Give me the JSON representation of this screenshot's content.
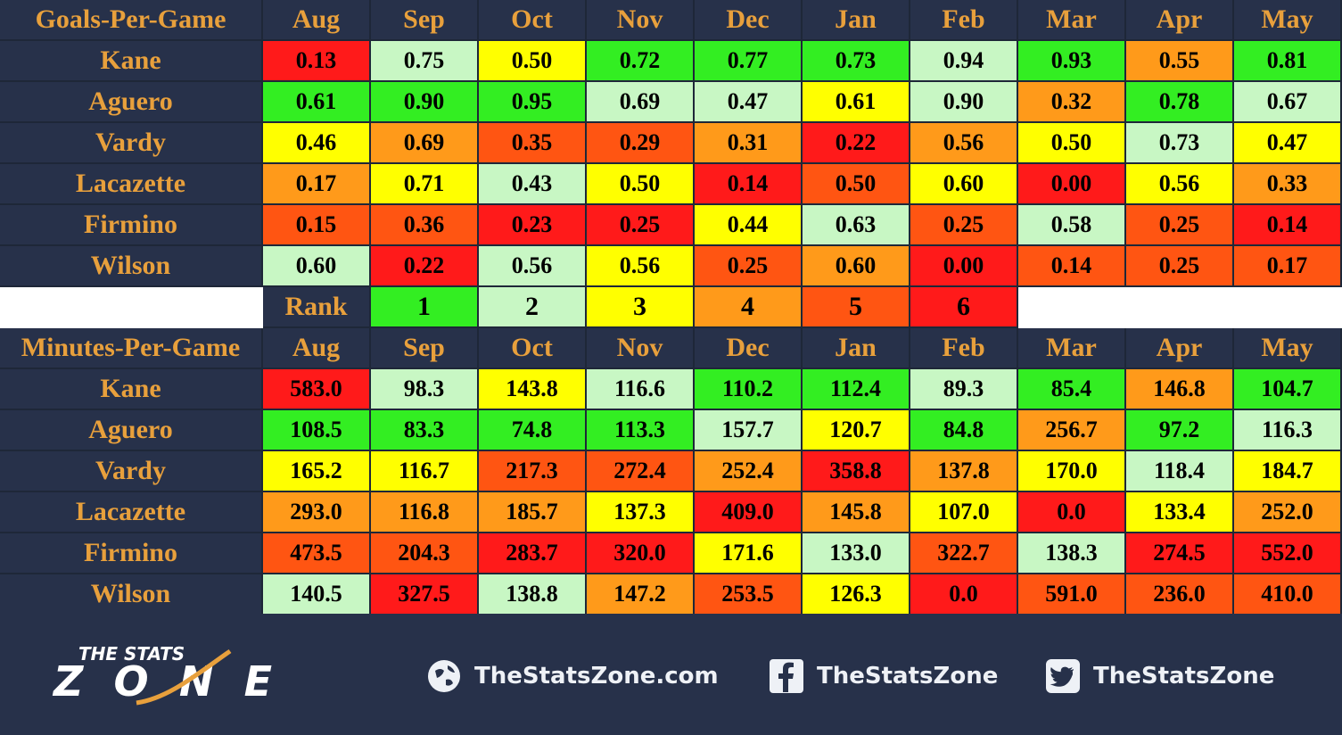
{
  "colors": {
    "rank_1": "#33ee22",
    "rank_2": "#c8f7c4",
    "rank_3": "#ffff00",
    "rank_4": "#ff9a1a",
    "rank_5": "#ff5512",
    "rank_6": "#ff1a1a",
    "header_bg": "#27314a",
    "header_text": "#e8a03c"
  },
  "rank_legend": {
    "label": "Rank",
    "ranks": [
      "1",
      "2",
      "3",
      "4",
      "5",
      "6"
    ]
  },
  "footer": {
    "logo_top": "THE STATS",
    "logo_bottom": "ZONE",
    "website": "TheStatsZone.com",
    "facebook": "TheStatsZone",
    "twitter": "TheStatsZone"
  },
  "chart_data": [
    {
      "type": "heatmap",
      "title": "Goals-Per-Game",
      "columns": [
        "Aug",
        "Sep",
        "Oct",
        "Nov",
        "Dec",
        "Jan",
        "Feb",
        "Mar",
        "Apr",
        "May"
      ],
      "rows": [
        {
          "name": "Kane",
          "values": [
            "0.13",
            "0.75",
            "0.50",
            "0.72",
            "0.77",
            "0.73",
            "0.94",
            "0.93",
            "0.55",
            "0.81"
          ],
          "ranks": [
            6,
            2,
            3,
            1,
            1,
            1,
            2,
            1,
            4,
            1
          ]
        },
        {
          "name": "Aguero",
          "values": [
            "0.61",
            "0.90",
            "0.95",
            "0.69",
            "0.47",
            "0.61",
            "0.90",
            "0.32",
            "0.78",
            "0.67"
          ],
          "ranks": [
            1,
            1,
            1,
            2,
            2,
            3,
            2,
            4,
            1,
            2
          ]
        },
        {
          "name": "Vardy",
          "values": [
            "0.46",
            "0.69",
            "0.35",
            "0.29",
            "0.31",
            "0.22",
            "0.56",
            "0.50",
            "0.73",
            "0.47"
          ],
          "ranks": [
            3,
            4,
            5,
            5,
            4,
            6,
            4,
            3,
            2,
            3
          ]
        },
        {
          "name": "Lacazette",
          "values": [
            "0.17",
            "0.71",
            "0.43",
            "0.50",
            "0.14",
            "0.50",
            "0.60",
            "0.00",
            "0.56",
            "0.33"
          ],
          "ranks": [
            4,
            3,
            2,
            3,
            6,
            5,
            3,
            6,
            3,
            4
          ]
        },
        {
          "name": "Firmino",
          "values": [
            "0.15",
            "0.36",
            "0.23",
            "0.25",
            "0.44",
            "0.63",
            "0.25",
            "0.58",
            "0.25",
            "0.14"
          ],
          "ranks": [
            5,
            5,
            6,
            6,
            3,
            2,
            5,
            2,
            5,
            6
          ]
        },
        {
          "name": "Wilson",
          "values": [
            "0.60",
            "0.22",
            "0.56",
            "0.56",
            "0.25",
            "0.60",
            "0.00",
            "0.14",
            "0.25",
            "0.17"
          ],
          "ranks": [
            2,
            6,
            2,
            3,
            5,
            4,
            6,
            5,
            5,
            5
          ]
        }
      ]
    },
    {
      "type": "heatmap",
      "title": "Minutes-Per-Game",
      "columns": [
        "Aug",
        "Sep",
        "Oct",
        "Nov",
        "Dec",
        "Jan",
        "Feb",
        "Mar",
        "Apr",
        "May"
      ],
      "rows": [
        {
          "name": "Kane",
          "values": [
            "583.0",
            "98.3",
            "143.8",
            "116.6",
            "110.2",
            "112.4",
            "89.3",
            "85.4",
            "146.8",
            "104.7"
          ],
          "ranks": [
            6,
            2,
            3,
            2,
            1,
            1,
            2,
            1,
            4,
            1
          ]
        },
        {
          "name": "Aguero",
          "values": [
            "108.5",
            "83.3",
            "74.8",
            "113.3",
            "157.7",
            "120.7",
            "84.8",
            "256.7",
            "97.2",
            "116.3"
          ],
          "ranks": [
            1,
            1,
            1,
            1,
            2,
            3,
            1,
            4,
            1,
            2
          ]
        },
        {
          "name": "Vardy",
          "values": [
            "165.2",
            "116.7",
            "217.3",
            "272.4",
            "252.4",
            "358.8",
            "137.8",
            "170.0",
            "118.4",
            "184.7"
          ],
          "ranks": [
            3,
            3,
            5,
            5,
            4,
            6,
            4,
            3,
            2,
            3
          ]
        },
        {
          "name": "Lacazette",
          "values": [
            "293.0",
            "116.8",
            "185.7",
            "137.3",
            "409.0",
            "145.8",
            "107.0",
            "0.0",
            "133.4",
            "252.0"
          ],
          "ranks": [
            4,
            4,
            4,
            3,
            6,
            4,
            3,
            6,
            3,
            4
          ]
        },
        {
          "name": "Firmino",
          "values": [
            "473.5",
            "204.3",
            "283.7",
            "320.0",
            "171.6",
            "133.0",
            "322.7",
            "138.3",
            "274.5",
            "552.0"
          ],
          "ranks": [
            5,
            5,
            6,
            6,
            3,
            2,
            5,
            2,
            6,
            6
          ]
        },
        {
          "name": "Wilson",
          "values": [
            "140.5",
            "327.5",
            "138.8",
            "147.2",
            "253.5",
            "126.3",
            "0.0",
            "591.0",
            "236.0",
            "410.0"
          ],
          "ranks": [
            2,
            6,
            2,
            4,
            5,
            3,
            6,
            5,
            5,
            5
          ]
        }
      ]
    }
  ]
}
